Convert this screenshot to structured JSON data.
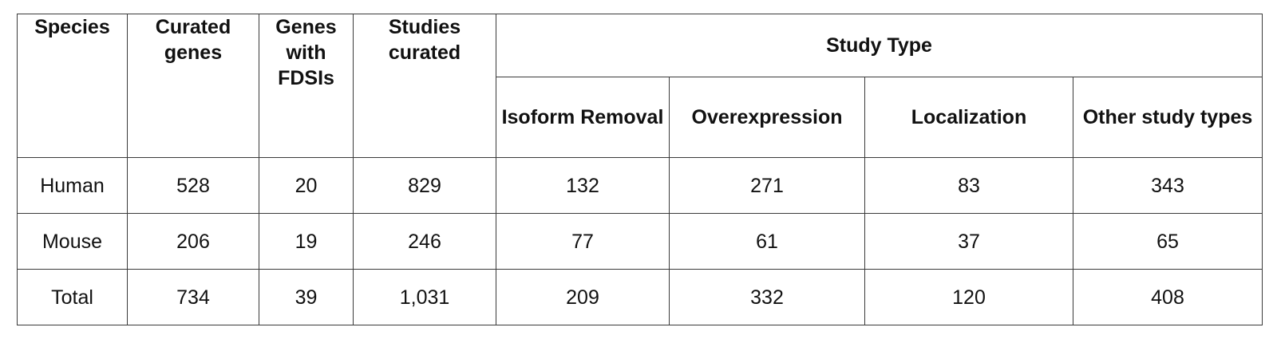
{
  "table": {
    "headers": {
      "species": "Species",
      "curated_genes": "Curated genes",
      "genes_with_fdsis": "Genes with FDSIs",
      "studies_curated": "Studies curated",
      "study_type": "Study Type",
      "isoform_removal": "Isoform Removal",
      "overexpression": "Overexpression",
      "localization": "Localization",
      "other_study_types": "Other study types"
    },
    "rows": [
      {
        "species": "Human",
        "curated_genes": "528",
        "genes_with_fdsis": "20",
        "studies_curated": "829",
        "isoform_removal": "132",
        "overexpression": "271",
        "localization": "83",
        "other_study_types": "343"
      },
      {
        "species": "Mouse",
        "curated_genes": "206",
        "genes_with_fdsis": "19",
        "studies_curated": "246",
        "isoform_removal": "77",
        "overexpression": "61",
        "localization": "37",
        "other_study_types": "65"
      },
      {
        "species": "Total",
        "curated_genes": "734",
        "genes_with_fdsis": "39",
        "studies_curated": "1,031",
        "isoform_removal": "209",
        "overexpression": "332",
        "localization": "120",
        "other_study_types": "408"
      }
    ]
  }
}
